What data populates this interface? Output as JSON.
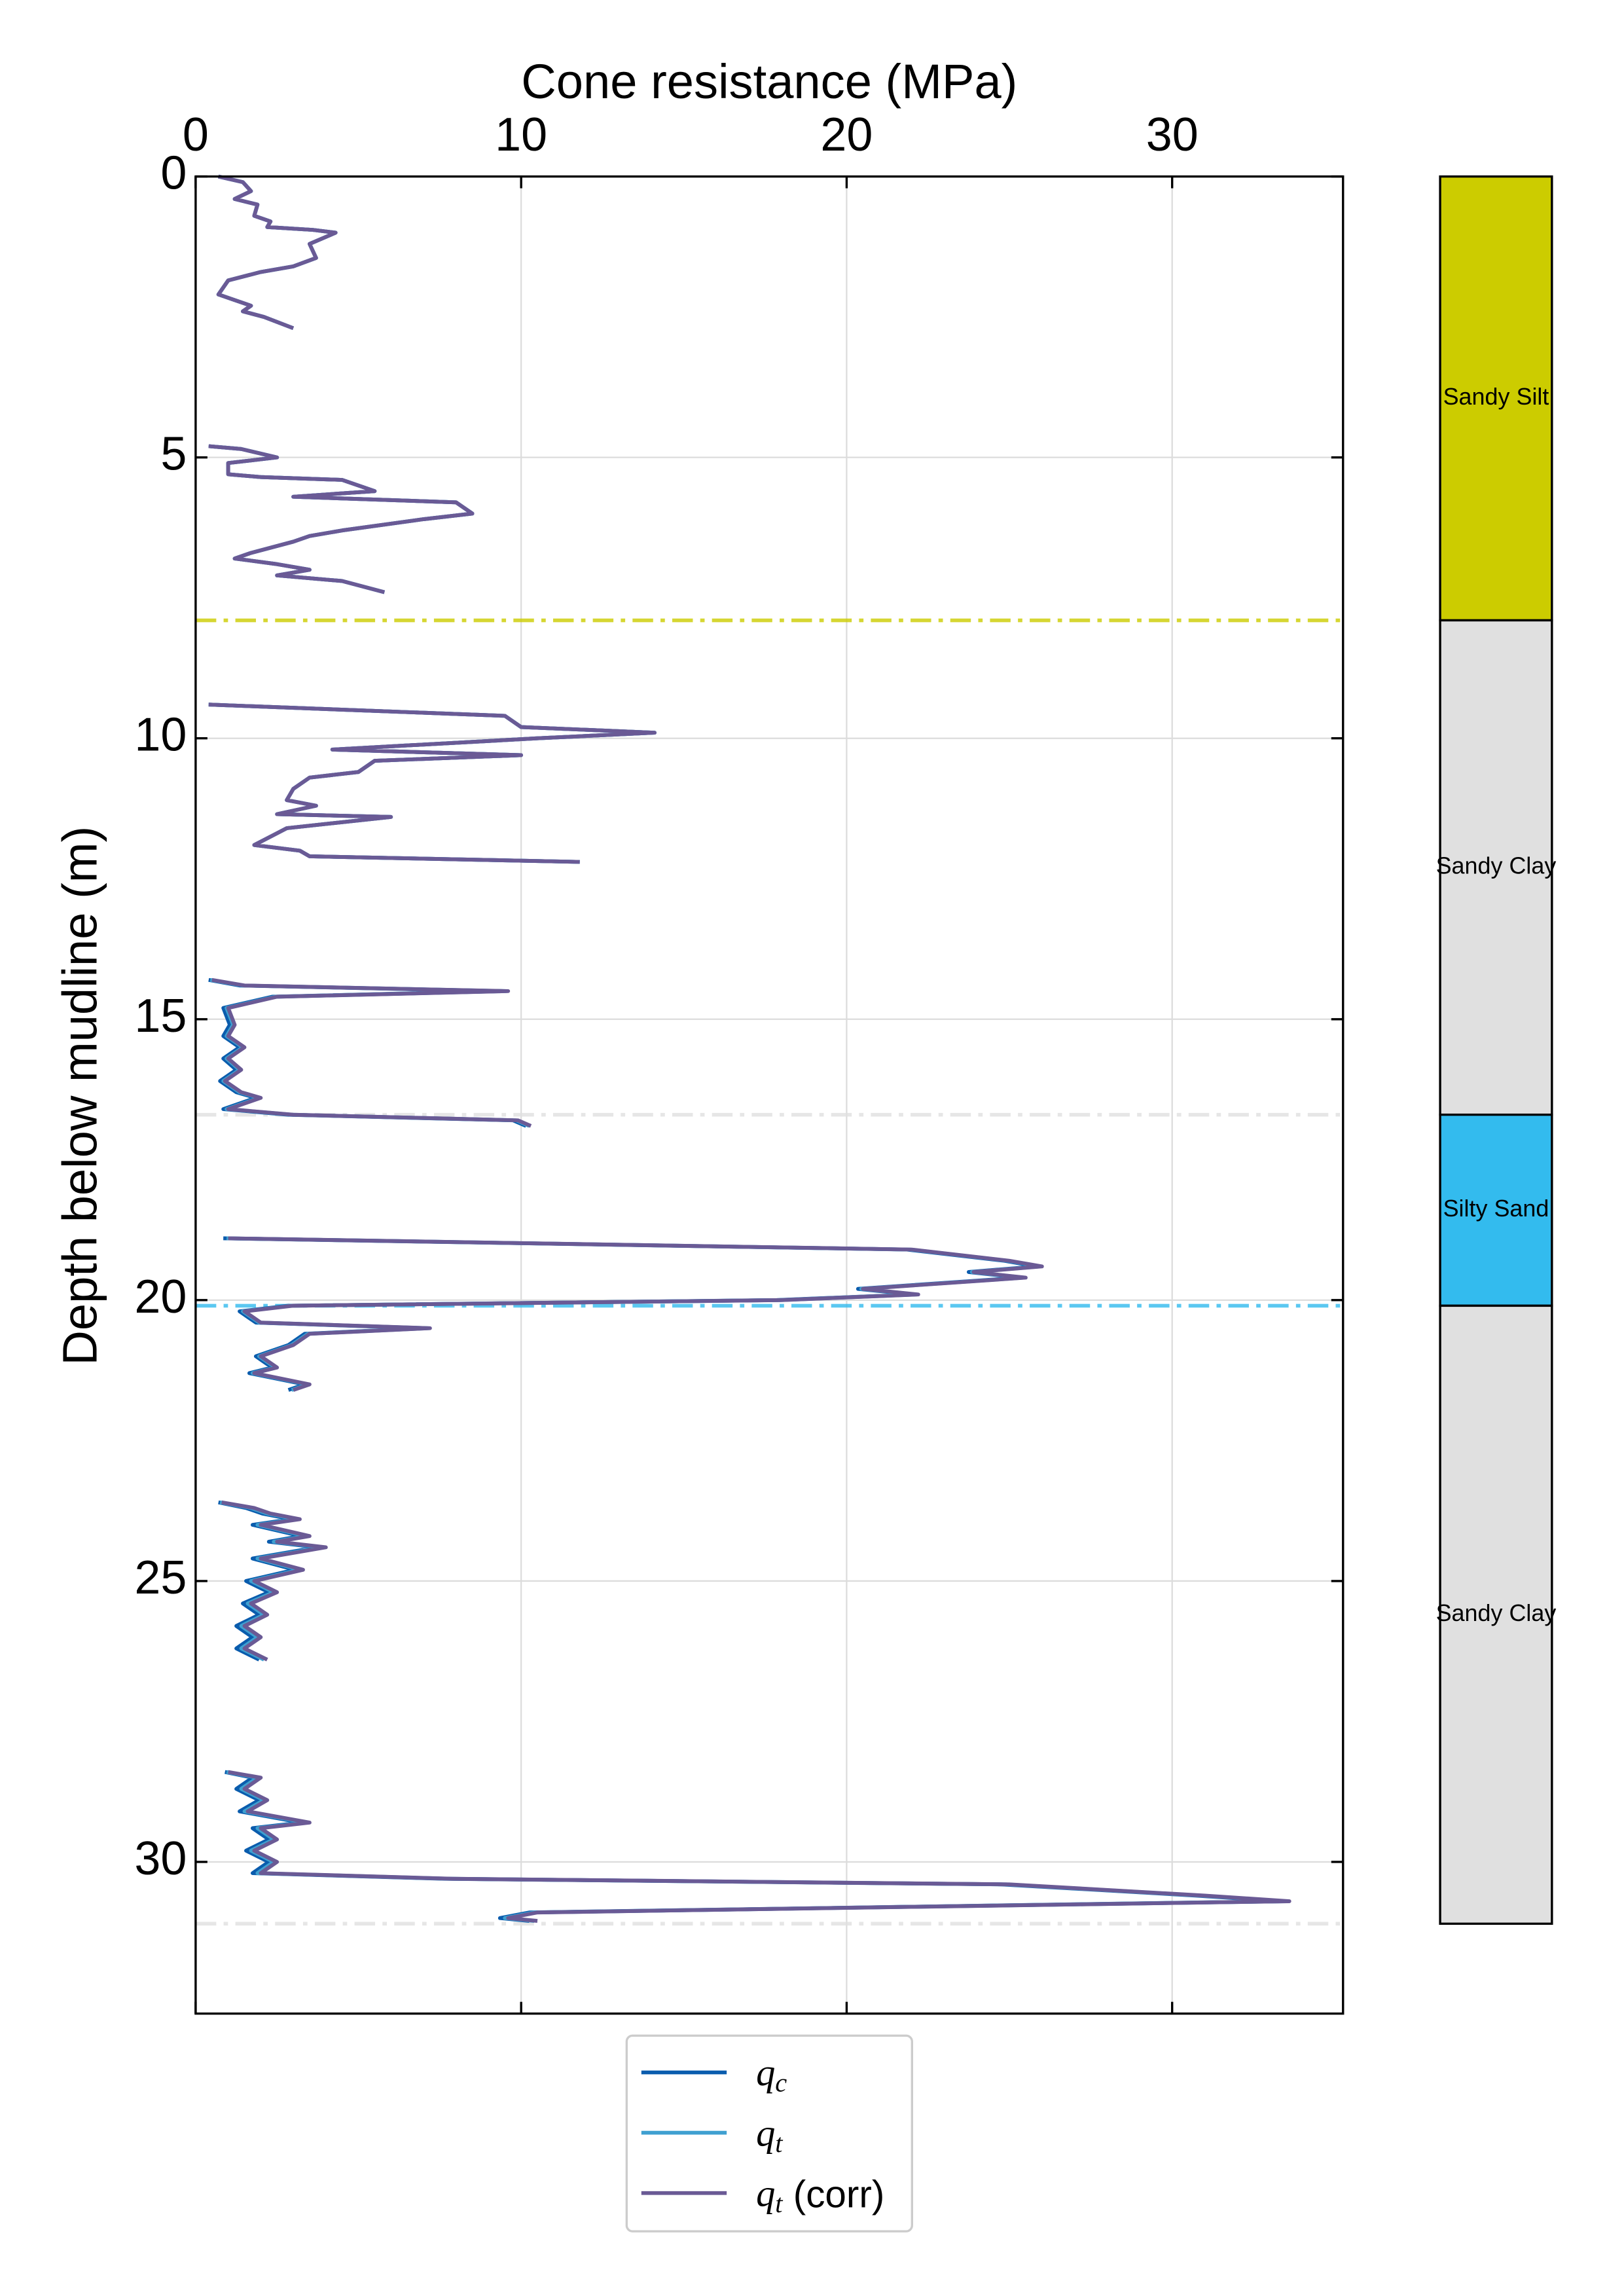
{
  "chart_data": {
    "type": "profile",
    "xlabel": "Cone resistance (MPa)",
    "ylabel": "Depth below mudline (m)",
    "xlim": [
      0,
      35.25
    ],
    "ylim": [
      0,
      32.7
    ],
    "y_inverted": true,
    "xticks": [
      0,
      10,
      20,
      30
    ],
    "yticks": [
      0,
      5,
      10,
      15,
      20,
      25,
      30
    ],
    "grid": true,
    "legend": "below",
    "y": [
      0,
      0.1,
      0.26,
      0.4,
      0.5,
      0.7,
      0.8,
      0.9,
      0.95,
      1.0,
      1.2,
      1.45,
      1.6,
      1.7,
      1.85,
      2.1,
      2.2,
      2.3,
      2.4,
      2.5,
      2.7,
      null,
      4.8,
      4.85,
      5.0,
      5.1,
      5.3,
      5.35,
      5.4,
      5.6,
      5.7,
      5.8,
      6.0,
      6.1,
      6.3,
      6.4,
      6.5,
      6.7,
      6.8,
      6.9,
      7.0,
      7.1,
      7.2,
      7.4,
      null,
      9.4,
      9.6,
      9.8,
      9.9,
      10.0,
      10.2,
      10.3,
      10.4,
      10.6,
      10.7,
      10.9,
      11.1,
      11.2,
      11.35,
      11.4,
      11.6,
      11.9,
      12.0,
      12.1,
      12.2,
      null,
      14.3,
      14.4,
      14.5,
      14.6,
      14.8,
      15.1,
      15.3,
      15.5,
      15.7,
      15.9,
      16.1,
      16.3,
      16.4,
      16.6,
      16.7,
      16.8,
      16.9,
      null,
      18.9,
      19.1,
      19.3,
      19.4,
      19.5,
      19.6,
      19.8,
      19.9,
      20.0,
      20.1,
      20.2,
      20.4,
      20.5,
      20.6,
      20.8,
      21.0,
      21.2,
      21.3,
      21.5,
      21.6,
      null,
      23.6,
      23.7,
      23.8,
      23.9,
      24.0,
      24.2,
      24.3,
      24.4,
      24.6,
      24.8,
      25.0,
      25.2,
      25.4,
      25.6,
      25.8,
      26.0,
      26.2,
      26.4,
      null,
      28.4,
      28.5,
      28.7,
      28.9,
      29.1,
      29.3,
      29.4,
      29.6,
      29.8,
      30.0,
      30.2,
      30.3,
      30.4,
      30.6,
      30.7,
      30.8,
      30.9,
      31.0,
      31.05
    ],
    "series": [
      {
        "name": "qc",
        "color": "#0a5cad",
        "values": [
          0.7,
          1.45,
          1.7,
          1.2,
          1.9,
          1.8,
          2.3,
          2.2,
          3.6,
          4.3,
          3.5,
          3.7,
          3.0,
          2.0,
          1.0,
          0.7,
          1.2,
          1.7,
          1.45,
          2.1,
          3.0,
          null,
          0.4,
          1.4,
          2.5,
          1.0,
          1.0,
          2.0,
          4.5,
          5.5,
          3.0,
          8.0,
          8.5,
          7.0,
          4.5,
          3.5,
          3.0,
          1.7,
          1.2,
          2.5,
          3.5,
          2.5,
          4.5,
          5.8,
          null,
          0.4,
          9.5,
          10.0,
          14.1,
          10.5,
          4.2,
          10.0,
          5.5,
          5.0,
          3.5,
          3.0,
          2.8,
          3.7,
          2.5,
          6.0,
          2.8,
          1.8,
          3.2,
          3.5,
          11.8,
          null,
          0.4,
          1.35,
          9.45,
          2.35,
          0.85,
          1.05,
          0.85,
          1.35,
          0.85,
          1.25,
          0.75,
          1.25,
          1.85,
          0.85,
          2.85,
          9.75,
          10.15,
          null,
          0.85,
          21.85,
          24.85,
          25.85,
          23.75,
          25.35,
          20.35,
          22.05,
          17.85,
          2.85,
          1.35,
          1.85,
          7.05,
          3.35,
          2.85,
          1.85,
          2.35,
          1.65,
          3.35,
          2.85,
          null,
          0.7,
          1.55,
          2.05,
          2.95,
          1.75,
          3.25,
          2.25,
          3.75,
          1.75,
          3.05,
          1.55,
          2.25,
          1.45,
          1.95,
          1.25,
          1.75,
          1.25,
          1.95,
          null,
          0.9,
          1.75,
          1.25,
          1.95,
          1.35,
          3.25,
          1.75,
          2.25,
          1.55,
          2.25,
          1.75,
          7.65,
          24.75,
          30.75,
          33.35,
          21.75,
          10.25,
          9.35,
          10.25
        ]
      },
      {
        "name": "qt",
        "color": "#3fa0d0",
        "values": [
          0.7,
          1.45,
          1.7,
          1.2,
          1.9,
          1.8,
          2.3,
          2.2,
          3.6,
          4.3,
          3.5,
          3.7,
          3.0,
          2.0,
          1.0,
          0.7,
          1.2,
          1.7,
          1.45,
          2.1,
          3.0,
          null,
          0.4,
          1.4,
          2.5,
          1.0,
          1.0,
          2.0,
          4.5,
          5.5,
          3.0,
          8.0,
          8.5,
          7.0,
          4.5,
          3.5,
          3.0,
          1.7,
          1.2,
          2.5,
          3.5,
          2.5,
          4.5,
          5.8,
          null,
          0.4,
          9.5,
          10.0,
          14.1,
          10.5,
          4.2,
          10.0,
          5.5,
          5.0,
          3.5,
          3.0,
          2.8,
          3.7,
          2.5,
          6.0,
          2.8,
          1.8,
          3.2,
          3.5,
          11.8,
          null,
          0.45,
          1.45,
          9.55,
          2.45,
          0.95,
          1.15,
          0.95,
          1.45,
          0.95,
          1.35,
          0.85,
          1.35,
          1.95,
          0.95,
          2.95,
          9.85,
          10.25,
          null,
          0.95,
          21.95,
          24.95,
          25.95,
          23.85,
          25.45,
          20.45,
          22.15,
          17.95,
          2.95,
          1.45,
          1.95,
          7.15,
          3.45,
          2.95,
          1.95,
          2.45,
          1.75,
          3.45,
          2.95,
          null,
          0.75,
          1.7,
          2.2,
          3.1,
          1.9,
          3.4,
          2.4,
          3.9,
          1.9,
          3.2,
          1.7,
          2.4,
          1.6,
          2.1,
          1.4,
          1.9,
          1.4,
          2.1,
          null,
          0.95,
          1.9,
          1.4,
          2.1,
          1.5,
          3.4,
          1.9,
          2.4,
          1.7,
          2.4,
          1.9,
          7.8,
          24.9,
          30.9,
          33.5,
          21.9,
          10.4,
          9.5,
          10.4
        ]
      },
      {
        "name": "qt (corr)",
        "color": "#6a5a95",
        "values": [
          0.7,
          1.45,
          1.7,
          1.2,
          1.9,
          1.8,
          2.3,
          2.2,
          3.6,
          4.3,
          3.5,
          3.7,
          3.0,
          2.0,
          1.0,
          0.7,
          1.2,
          1.7,
          1.45,
          2.1,
          3.0,
          null,
          0.4,
          1.4,
          2.5,
          1.0,
          1.0,
          2.0,
          4.5,
          5.5,
          3.0,
          8.0,
          8.5,
          7.0,
          4.5,
          3.5,
          3.0,
          1.7,
          1.2,
          2.5,
          3.5,
          2.5,
          4.5,
          5.8,
          null,
          0.4,
          9.5,
          10.0,
          14.1,
          10.5,
          4.2,
          10.0,
          5.5,
          5.0,
          3.5,
          3.0,
          2.8,
          3.7,
          2.5,
          6.0,
          2.8,
          1.8,
          3.2,
          3.5,
          11.8,
          null,
          0.5,
          1.5,
          9.6,
          2.5,
          1.0,
          1.2,
          1.0,
          1.5,
          1.0,
          1.4,
          0.9,
          1.4,
          2.0,
          1.0,
          3.0,
          9.9,
          10.3,
          null,
          1.0,
          22,
          25,
          26.0,
          23.9,
          25.5,
          20.5,
          22.2,
          18,
          3.0,
          1.5,
          2.0,
          7.2,
          3.5,
          3.0,
          2.0,
          2.5,
          1.8,
          3.5,
          3.0,
          null,
          0.8,
          1.8,
          2.3,
          3.2,
          2.0,
          3.5,
          2.5,
          4.0,
          2.0,
          3.3,
          1.8,
          2.5,
          1.7,
          2.2,
          1.5,
          2.0,
          1.5,
          2.2,
          null,
          1.0,
          2.0,
          1.5,
          2.2,
          1.6,
          3.5,
          2.0,
          2.5,
          1.8,
          2.5,
          2.0,
          7.9,
          25,
          31,
          33.6,
          22,
          10.5,
          9.6,
          10.5
        ]
      }
    ],
    "layers": [
      {
        "name": "Sandy Silt",
        "top": 0,
        "bottom": 7.9,
        "color": "#cccc00"
      },
      {
        "name": "Sandy Clay",
        "top": 7.9,
        "bottom": 16.7,
        "color": "#e0e0e0"
      },
      {
        "name": "Silty Sand",
        "top": 16.7,
        "bottom": 20.1,
        "color": "#33bbee"
      },
      {
        "name": "Sandy Clay",
        "top": 20.1,
        "bottom": 31.1,
        "color": "#e0e0e0"
      }
    ]
  }
}
